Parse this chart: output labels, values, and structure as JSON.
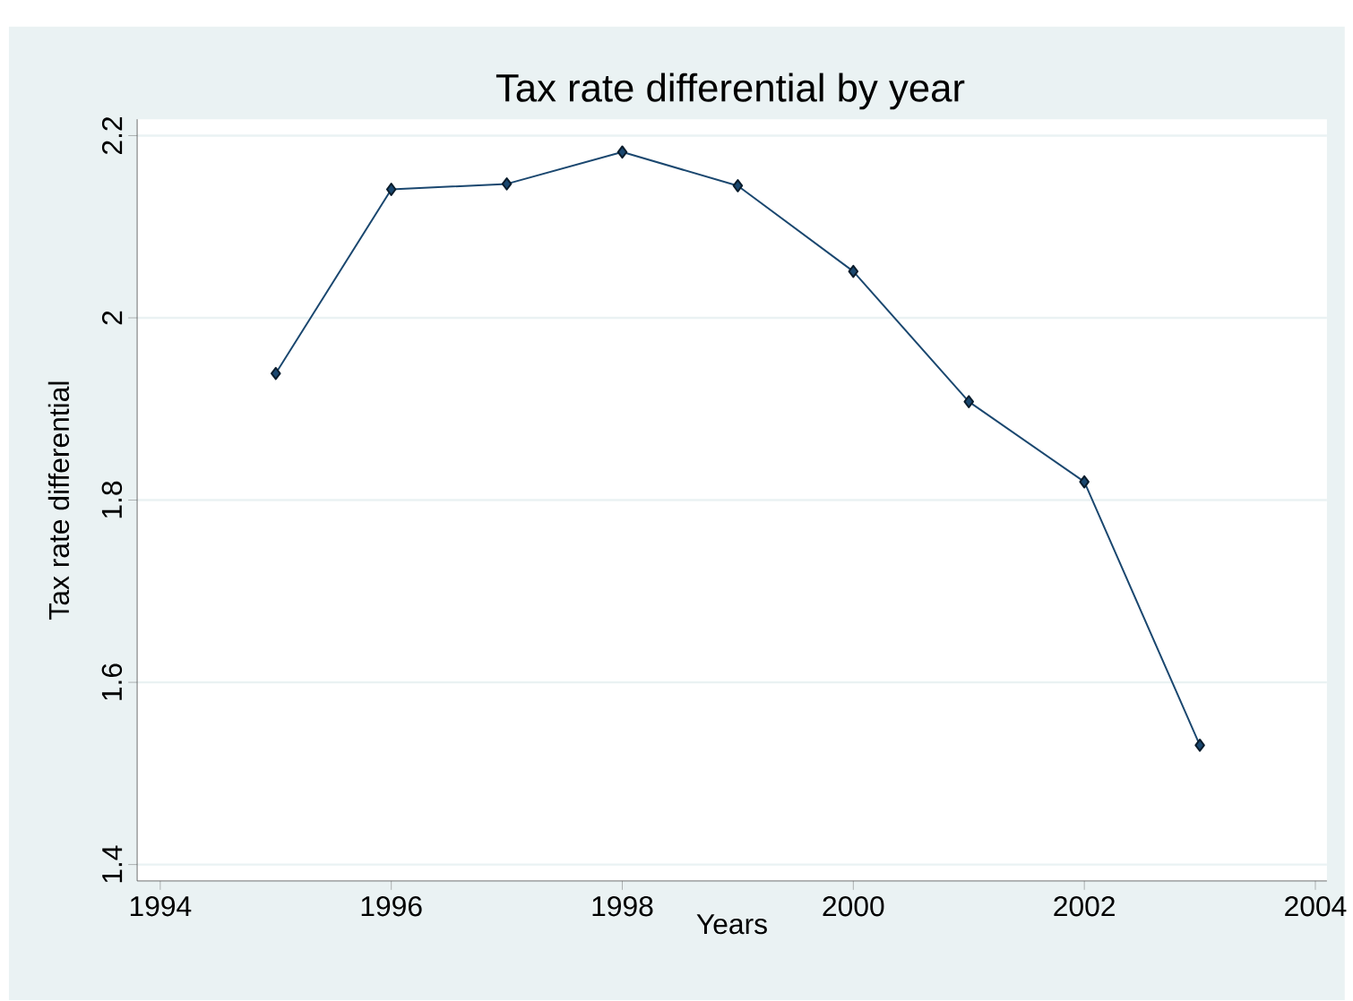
{
  "chart_data": {
    "type": "line",
    "title": "Tax rate differential by year",
    "xlabel": "Years",
    "ylabel": "Tax rate differential",
    "x": [
      1995,
      1996,
      1997,
      1998,
      1999,
      2000,
      2001,
      2002,
      2003
    ],
    "series": [
      {
        "color": "#1a476f",
        "values": [
          1.939,
          2.141,
          2.147,
          2.182,
          2.145,
          2.051,
          1.908,
          1.82,
          1.531
        ]
      }
    ],
    "xlim": [
      1993.8,
      2004.1
    ],
    "xticks": [
      1994,
      1996,
      1998,
      2000,
      2002,
      2004
    ],
    "ylim": [
      1.382,
      2.218
    ],
    "yticks": [
      1.4,
      1.6,
      1.8,
      2,
      2.2
    ],
    "grid": "y",
    "marker": "diamond",
    "line_style": "solid"
  }
}
